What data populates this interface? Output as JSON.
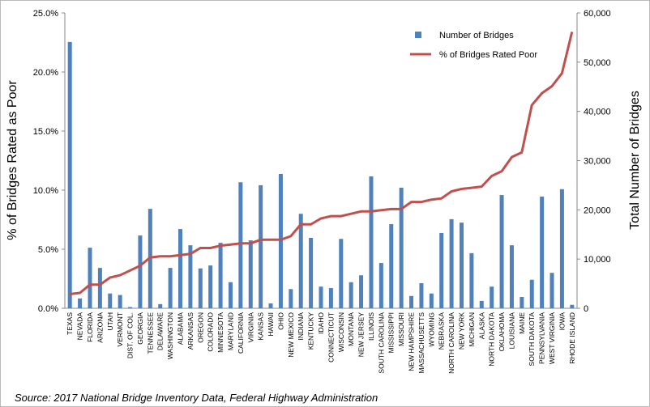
{
  "chart_data": {
    "type": "bar_line",
    "y_label": "% of Bridges Rated as Poor",
    "y2_label": "Total Number of Bridges",
    "source": "Source: 2017  National Bridge Inventory Data, Federal Highway Administration",
    "categories": [
      "TEXAS",
      "NEVADA",
      "FLORIDA",
      "ARIZONA",
      "UTAH",
      "VERMONT",
      "DIST. OF COL.",
      "GEORGIA",
      "TENNESSEE",
      "DELAWARE",
      "WASHINGTON",
      "ALABAMA",
      "ARKANSAS",
      "OREGON",
      "COLORADO",
      "MINNESOTA",
      "MARYLAND",
      "CALIFORNIA",
      "VIRGINIA",
      "KANSAS",
      "HAWAII",
      "OHIO",
      "NEW MEXICO",
      "INDIANA",
      "KENTUCKY",
      "IDAHO",
      "CONNECTICUT",
      "WISCONSIN",
      "MONTANA",
      "NEW JERSEY",
      "ILLINOIS",
      "SOUTH CAROLINA",
      "MISSISSIPPI",
      "MISSOURI",
      "NEW HAMPSHIRE",
      "MASSACHUSETTS",
      "WYOMING",
      "NEBRASKA",
      "NORTH CAROLINA",
      "NEW YORK",
      "MICHIGAN",
      "ALASKA",
      "NORTH DAKOTA",
      "OKLAHOMA",
      "LOUISIANA",
      "MAINE",
      "SOUTH DAKOTA",
      "PENNSYLVANIA",
      "WEST VIRGINIA",
      "IOWA",
      "RHODE ISLAND"
    ],
    "series": [
      {
        "name": "Number of Bridges",
        "color": "#4f81bd",
        "axis": "y2",
        "kind": "bar",
        "values": [
          54100,
          2000,
          12300,
          8200,
          3000,
          2700,
          250,
          14800,
          20200,
          850,
          8200,
          16100,
          12800,
          8100,
          8700,
          13300,
          5300,
          25600,
          13800,
          25000,
          1000,
          27300,
          3900,
          19200,
          14300,
          4400,
          4100,
          14100,
          5300,
          6700,
          26800,
          9200,
          17100,
          24500,
          2500,
          5100,
          3000,
          15300,
          18100,
          17400,
          11200,
          1500,
          4400,
          23000,
          12800,
          2300,
          5800,
          22700,
          7200,
          24200,
          700
        ]
      },
      {
        "name": "% of Bridges Rated Poor",
        "color": "#c0504d",
        "axis": "y",
        "kind": "line",
        "values": [
          1.2,
          1.3,
          2.0,
          2.0,
          2.6,
          2.8,
          3.2,
          3.6,
          4.3,
          4.4,
          4.4,
          4.5,
          4.6,
          5.1,
          5.1,
          5.3,
          5.4,
          5.5,
          5.5,
          5.8,
          5.8,
          5.8,
          6.1,
          7.1,
          7.1,
          7.6,
          7.8,
          7.8,
          8.0,
          8.2,
          8.2,
          8.3,
          8.4,
          8.4,
          9.0,
          9.0,
          9.2,
          9.3,
          9.9,
          10.1,
          10.2,
          10.3,
          11.2,
          11.6,
          12.8,
          13.2,
          17.2,
          18.2,
          18.8,
          19.9,
          23.4
        ]
      }
    ],
    "ylim": [
      0,
      25
    ],
    "yticks": [
      {
        "value": 0,
        "label": "0.0%"
      },
      {
        "value": 5,
        "label": "5.0%"
      },
      {
        "value": 10,
        "label": "10.0%"
      },
      {
        "value": 15,
        "label": "15.0%"
      },
      {
        "value": 20,
        "label": "20.0%"
      },
      {
        "value": 25,
        "label": "25.0%"
      }
    ],
    "y2lim": [
      0,
      60000
    ],
    "y2ticks": [
      0,
      {
        "value": 10000,
        "label": "10,000"
      },
      {
        "value": 20000,
        "label": "20,000"
      },
      {
        "value": 30000,
        "label": "30,000"
      },
      {
        "value": 40000,
        "label": "40,000"
      },
      {
        "value": 50000,
        "label": "50,000"
      },
      {
        "value": 60000,
        "label": "60,000"
      }
    ],
    "legend": "upper right"
  }
}
